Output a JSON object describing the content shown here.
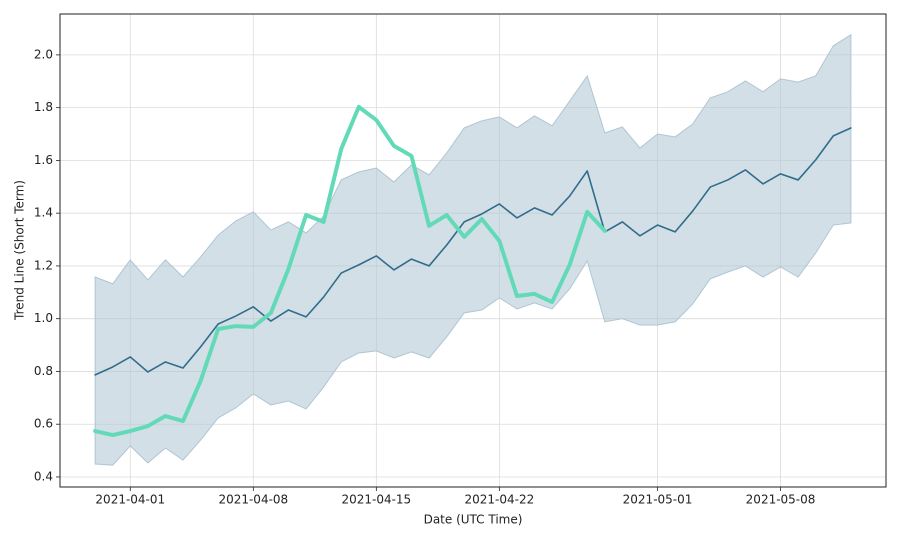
{
  "chart_data": {
    "type": "line",
    "xlabel": "Date (UTC Time)",
    "ylabel": "Trend Line (Short Term)",
    "x": [
      "2021-03-30",
      "2021-03-31",
      "2021-04-01",
      "2021-04-02",
      "2021-04-03",
      "2021-04-04",
      "2021-04-05",
      "2021-04-06",
      "2021-04-07",
      "2021-04-08",
      "2021-04-09",
      "2021-04-10",
      "2021-04-11",
      "2021-04-12",
      "2021-04-13",
      "2021-04-14",
      "2021-04-15",
      "2021-04-16",
      "2021-04-17",
      "2021-04-18",
      "2021-04-19",
      "2021-04-20",
      "2021-04-21",
      "2021-04-22",
      "2021-04-23",
      "2021-04-24",
      "2021-04-25",
      "2021-04-26",
      "2021-04-27",
      "2021-04-28",
      "2021-04-29",
      "2021-04-30",
      "2021-05-01",
      "2021-05-02",
      "2021-05-03",
      "2021-05-04",
      "2021-05-05",
      "2021-05-06",
      "2021-05-07",
      "2021-05-08",
      "2021-05-09",
      "2021-05-10",
      "2021-05-11",
      "2021-05-12"
    ],
    "band": {
      "color": "#aec5d4",
      "upper": [
        1.158,
        1.132,
        1.223,
        1.147,
        1.223,
        1.158,
        1.234,
        1.317,
        1.37,
        1.405,
        1.336,
        1.367,
        1.325,
        1.389,
        1.526,
        1.556,
        1.571,
        1.518,
        1.583,
        1.545,
        1.628,
        1.723,
        1.75,
        1.765,
        1.723,
        1.769,
        1.731,
        1.825,
        1.92,
        1.704,
        1.727,
        1.647,
        1.7,
        1.689,
        1.738,
        1.837,
        1.86,
        1.901,
        1.86,
        1.909,
        1.897,
        1.92,
        2.034,
        2.076
      ],
      "lower": [
        0.449,
        0.445,
        0.518,
        0.453,
        0.51,
        0.464,
        0.54,
        0.624,
        0.662,
        0.715,
        0.673,
        0.688,
        0.658,
        0.741,
        0.836,
        0.87,
        0.878,
        0.851,
        0.874,
        0.851,
        0.931,
        1.022,
        1.033,
        1.079,
        1.037,
        1.06,
        1.037,
        1.113,
        1.219,
        0.988,
        1.0,
        0.976,
        0.976,
        0.988,
        1.056,
        1.151,
        1.177,
        1.2,
        1.158,
        1.196,
        1.158,
        1.249,
        1.355,
        1.363
      ]
    },
    "series": [
      {
        "color": "#306c8c",
        "width": 1.6,
        "values": [
          0.787,
          0.817,
          0.855,
          0.798,
          0.836,
          0.813,
          0.893,
          0.98,
          1.01,
          1.045,
          0.991,
          1.033,
          1.007,
          1.082,
          1.173,
          1.204,
          1.238,
          1.185,
          1.226,
          1.2,
          1.279,
          1.367,
          1.397,
          1.435,
          1.382,
          1.42,
          1.393,
          1.465,
          1.56,
          1.329,
          1.367,
          1.314,
          1.355,
          1.329,
          1.408,
          1.499,
          1.526,
          1.564,
          1.511,
          1.549,
          1.526,
          1.602,
          1.693,
          1.723
        ]
      },
      {
        "color": "#62dab7",
        "width": 4,
        "values": [
          0.574,
          0.559,
          0.574,
          0.593,
          0.631,
          0.612,
          0.764,
          0.961,
          0.972,
          0.969,
          1.022,
          1.189,
          1.393,
          1.367,
          1.643,
          1.803,
          1.753,
          1.655,
          1.617,
          1.352,
          1.393,
          1.31,
          1.378,
          1.295,
          1.086,
          1.094,
          1.063,
          1.204,
          1.405,
          1.333,
          null,
          null,
          null,
          null,
          null,
          null,
          null,
          null,
          null,
          null,
          null,
          null,
          null,
          null
        ]
      }
    ],
    "xlim": [
      "2021-03-28",
      "2021-05-14"
    ],
    "xticks": [
      "2021-04-01",
      "2021-04-08",
      "2021-04-15",
      "2021-04-22",
      "2021-05-01",
      "2021-05-08"
    ],
    "ylim": [
      0.362,
      2.155
    ],
    "yticks": [
      0.4,
      0.6,
      0.8,
      {
        "value": 1,
        "label": "1.0"
      },
      1.2,
      1.4,
      1.6,
      1.8,
      {
        "value": 2,
        "label": "2.0"
      }
    ],
    "grid": true
  }
}
